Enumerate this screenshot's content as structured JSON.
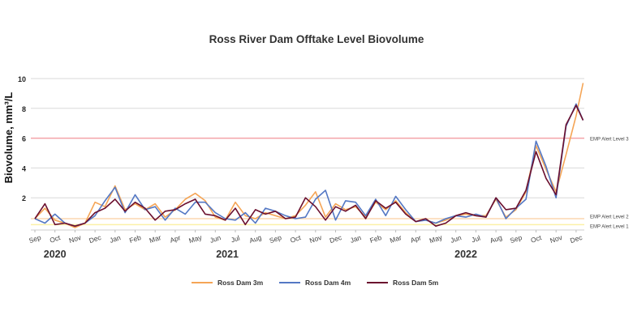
{
  "chart_data": {
    "type": "line",
    "title": "Ross River Dam Offtake Level Biovolume",
    "ylabel": "Biovolume, mm³/L",
    "xlabel": "",
    "ylim": [
      0,
      10
    ],
    "yticks": [
      2,
      4,
      6,
      8,
      10
    ],
    "grid": true,
    "legend_position": "bottom",
    "x_unit": "months since Sep 2020",
    "month_labels": [
      "Sep",
      "Oct",
      "Nov",
      "Dec",
      "Jan",
      "Feb",
      "Mar",
      "Apr",
      "May",
      "Jun",
      "Jul",
      "Aug",
      "Sep",
      "Oct",
      "Nov",
      "Dec",
      "Jan",
      "Feb",
      "Mar",
      "Apr",
      "May",
      "Jun",
      "Jul",
      "Aug",
      "Sep",
      "Oct",
      "Nov",
      "Dec"
    ],
    "year_labels": [
      {
        "label": "2020",
        "month_index": 1
      },
      {
        "label": "2021",
        "month_index": 9.6
      },
      {
        "label": "2022",
        "month_index": 21.5
      }
    ],
    "alert_levels": [
      {
        "label": "EMP Alert Level 3",
        "value": 6,
        "color": "#f4a3a8"
      },
      {
        "label": "EMP Alert Level 2",
        "value": 0.6,
        "color": "#fbd7b0"
      },
      {
        "label": "EMP Alert Level 1",
        "value": 0.2,
        "color": "#fbf0a6"
      }
    ],
    "x": [
      0,
      0.5,
      1,
      1.5,
      2,
      2.5,
      3,
      3.5,
      4,
      4.5,
      5,
      5.5,
      6,
      6.5,
      7,
      7.5,
      8,
      8.5,
      9,
      9.5,
      10,
      10.5,
      11,
      11.5,
      12,
      12.5,
      13,
      13.5,
      14,
      14.5,
      15,
      15.5,
      16,
      16.5,
      17,
      17.5,
      18,
      18.5,
      19,
      19.5,
      20,
      20.5,
      21,
      21.5,
      22,
      22.5,
      23,
      23.5,
      24,
      24.5,
      25,
      25.5,
      26,
      26.5,
      27,
      27.35
    ],
    "series": [
      {
        "name": "Ross Dam 3m",
        "color": "#f5a556",
        "values": [
          0.6,
          1.3,
          0.5,
          0.3,
          0.0,
          0.3,
          1.7,
          1.4,
          2.8,
          1.2,
          1.6,
          1.2,
          1.6,
          0.7,
          1.2,
          1.9,
          2.3,
          1.8,
          0.7,
          0.5,
          1.7,
          0.8,
          0.6,
          1.0,
          0.8,
          0.6,
          0.8,
          1.5,
          2.4,
          0.7,
          1.6,
          1.2,
          1.4,
          0.7,
          1.7,
          1.2,
          1.8,
          1.0,
          0.4,
          0.5,
          0.3,
          0.5,
          0.8,
          0.9,
          0.8,
          0.8,
          1.9,
          0.7,
          1.2,
          2.4,
          5.5,
          3.9,
          2.4,
          4.9,
          7.5,
          9.7
        ]
      },
      {
        "name": "Ross Dam 4m",
        "color": "#5478c4",
        "values": [
          0.6,
          0.3,
          0.9,
          0.3,
          0.1,
          0.3,
          0.8,
          1.8,
          2.7,
          1.0,
          2.2,
          1.2,
          1.4,
          0.5,
          1.3,
          0.9,
          1.7,
          1.7,
          1.0,
          0.6,
          0.5,
          1.0,
          0.3,
          1.3,
          1.1,
          0.8,
          0.6,
          0.7,
          1.9,
          2.5,
          0.5,
          1.8,
          1.7,
          0.8,
          1.9,
          0.8,
          2.1,
          1.2,
          0.4,
          0.5,
          0.3,
          0.6,
          0.8,
          0.7,
          0.9,
          0.7,
          2.0,
          0.6,
          1.3,
          1.9,
          5.8,
          4.1,
          2.0,
          6.8,
          8.3,
          7.2
        ]
      },
      {
        "name": "Ross Dam 5m",
        "color": "#6b0f2e",
        "values": [
          0.6,
          1.6,
          0.2,
          0.3,
          0.1,
          0.3,
          1.0,
          1.3,
          1.9,
          1.1,
          1.7,
          1.3,
          0.5,
          1.1,
          1.2,
          1.6,
          1.9,
          0.9,
          0.8,
          0.5,
          1.3,
          0.2,
          1.2,
          0.9,
          1.1,
          0.6,
          0.7,
          2.0,
          1.4,
          0.5,
          1.4,
          1.1,
          1.5,
          0.6,
          1.8,
          1.3,
          1.7,
          0.9,
          0.4,
          0.6,
          0.1,
          0.3,
          0.8,
          1.0,
          0.8,
          0.7,
          2.0,
          1.2,
          1.3,
          2.5,
          5.1,
          3.3,
          2.2,
          6.9,
          8.2,
          7.2
        ]
      }
    ]
  }
}
